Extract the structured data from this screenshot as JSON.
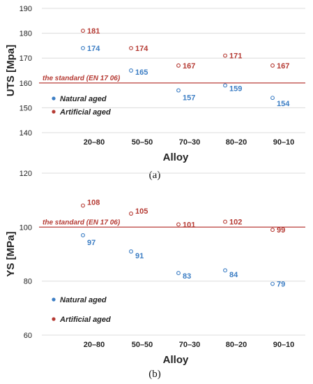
{
  "colors": {
    "natural": "#3b7dc4",
    "artificial": "#b53a33",
    "standard": "#c0504d",
    "grid": "#dcdcdc"
  },
  "chart_data": [
    {
      "type": "scatter",
      "panel_label": "(a)",
      "xlabel": "Alloy",
      "ylabel": "UTS [Mpa]",
      "ylim": [
        140,
        190
      ],
      "yticks": [
        140,
        150,
        160,
        170,
        180,
        190
      ],
      "grid": true,
      "categories": [
        "20–80",
        "50–50",
        "70–30",
        "80–20",
        "90–10"
      ],
      "series": [
        {
          "name": "Natural aged",
          "values": [
            174,
            165,
            157,
            159,
            154
          ]
        },
        {
          "name": "Artificial aged",
          "values": [
            181,
            174,
            167,
            171,
            167
          ]
        }
      ],
      "reference_line": {
        "value": 160,
        "label": "the standard (EN 17 06)"
      },
      "legend": [
        "Natural aged",
        "Artificial aged"
      ]
    },
    {
      "type": "scatter",
      "panel_label": "(b)",
      "xlabel": "Alloy",
      "ylabel": "YS [MPa]",
      "ylim": [
        60,
        120
      ],
      "yticks": [
        60,
        80,
        100,
        120
      ],
      "grid": true,
      "categories": [
        "20–80",
        "50–50",
        "70–30",
        "80–20",
        "90–10"
      ],
      "series": [
        {
          "name": "Natural aged",
          "values": [
            97,
            91,
            83,
            84,
            79
          ]
        },
        {
          "name": "Artificial aged",
          "values": [
            108,
            105,
            101,
            102,
            99
          ]
        }
      ],
      "reference_line": {
        "value": 100,
        "label": "the standard (EN 17 06)"
      },
      "legend": [
        "Natural aged",
        "Artificial aged"
      ]
    }
  ]
}
